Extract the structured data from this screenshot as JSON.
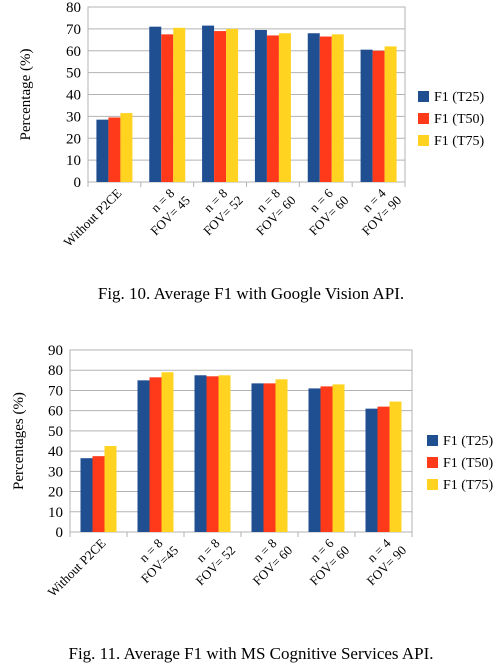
{
  "chart_data": [
    {
      "type": "bar",
      "ylabel": "Percentage (%)",
      "xlabel": "",
      "ylim": [
        0,
        80
      ],
      "yticks": [
        0,
        10,
        20,
        30,
        40,
        50,
        60,
        70,
        80
      ],
      "grid": true,
      "legend_position": "right",
      "categories": [
        [
          "Without P2CE"
        ],
        [
          "n = 8",
          "FOV= 45"
        ],
        [
          "n = 8",
          "FOV= 52"
        ],
        [
          "n = 8",
          "FOV= 60"
        ],
        [
          "n = 6",
          "FOV= 60"
        ],
        [
          "n = 4",
          "FOV= 90"
        ]
      ],
      "series": [
        {
          "name": "F1 (T25)",
          "color": "#1f4e91",
          "values": [
            28.5,
            71,
            71.5,
            69.5,
            68,
            60.5
          ]
        },
        {
          "name": "F1 (T50)",
          "color": "#ff3a1a",
          "values": [
            29.5,
            67.5,
            69,
            67,
            66.5,
            60
          ]
        },
        {
          "name": "F1 (T75)",
          "color": "#ffd320",
          "values": [
            31.5,
            70.5,
            70,
            68,
            67.5,
            62
          ]
        }
      ]
    },
    {
      "type": "bar",
      "ylabel": "Percentages (%)",
      "xlabel": "",
      "ylim": [
        0,
        90
      ],
      "yticks": [
        0,
        10,
        20,
        30,
        40,
        50,
        60,
        70,
        80,
        90
      ],
      "grid": true,
      "legend_position": "right",
      "categories": [
        [
          "Without P2CE"
        ],
        [
          "n = 8",
          "FOV=45"
        ],
        [
          "n = 8",
          "FOV= 52"
        ],
        [
          "n = 8",
          "FOV= 60"
        ],
        [
          "n = 6",
          "FOV= 60"
        ],
        [
          "n = 4",
          "FOV= 90"
        ]
      ],
      "series": [
        {
          "name": "F1 (T25)",
          "color": "#1f4e91",
          "values": [
            36.5,
            75,
            77.5,
            73.5,
            71,
            61
          ]
        },
        {
          "name": "F1 (T50)",
          "color": "#ff3a1a",
          "values": [
            37.5,
            76.5,
            77,
            73.5,
            72,
            62
          ]
        },
        {
          "name": "F1 (T75)",
          "color": "#ffd320",
          "values": [
            42.5,
            79,
            77.5,
            75.5,
            73,
            64.5
          ]
        }
      ]
    }
  ],
  "captions": {
    "fig10": "Fig. 10.  Average F1 with Google Vision API.",
    "fig11": "Fig. 11.  Average F1 with MS Cognitive Services API."
  }
}
